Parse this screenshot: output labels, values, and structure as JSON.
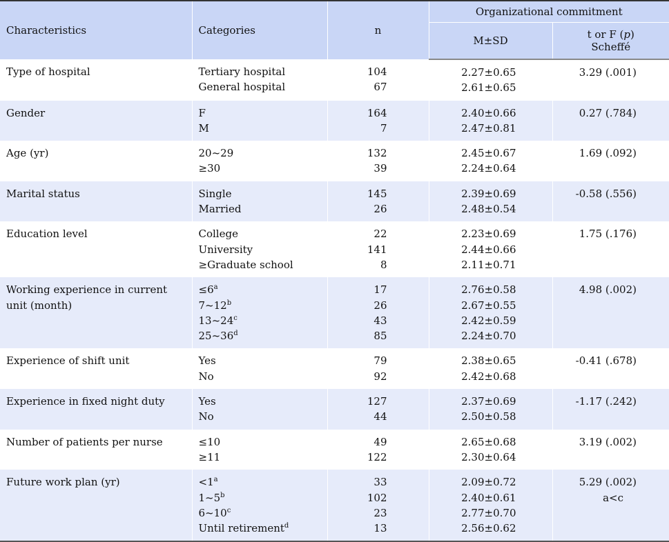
{
  "header": {
    "characteristics": "Characteristics",
    "categories": "Categories",
    "n": "n",
    "organizational_commitment": "Organizational commitment",
    "msd": "M±SD",
    "t_or_f_prefix": "t or F (",
    "t_or_f_p": "p",
    "t_or_f_suffix": ")",
    "scheffe": "Scheffé"
  },
  "rows": [
    {
      "characteristic": "Type of hospital",
      "categories": [
        "Tertiary hospital",
        "General hospital"
      ],
      "sups": [
        "",
        ""
      ],
      "n": [
        "104",
        "67"
      ],
      "msd": [
        "2.27±0.65",
        "2.61±0.65"
      ],
      "t": "3.29 (.001)",
      "scheffe": ""
    },
    {
      "characteristic": "Gender",
      "categories": [
        "F",
        "M"
      ],
      "sups": [
        "",
        ""
      ],
      "n": [
        "164",
        "7"
      ],
      "msd": [
        "2.40±0.66",
        "2.47±0.81"
      ],
      "t": "0.27 (.784)",
      "scheffe": ""
    },
    {
      "characteristic": "Age (yr)",
      "categories": [
        "20~29",
        "≥30"
      ],
      "sups": [
        "",
        ""
      ],
      "n": [
        "132",
        "39"
      ],
      "msd": [
        "2.45±0.67",
        "2.24±0.64"
      ],
      "t": "1.69 (.092)",
      "scheffe": ""
    },
    {
      "characteristic": "Marital status",
      "categories": [
        "Single",
        "Married"
      ],
      "sups": [
        "",
        ""
      ],
      "n": [
        "145",
        "26"
      ],
      "msd": [
        "2.39±0.69",
        "2.48±0.54"
      ],
      "t": "-0.58 (.556)",
      "scheffe": ""
    },
    {
      "characteristic": "Education level",
      "categories": [
        "College",
        "University",
        "≥Graduate school"
      ],
      "sups": [
        "",
        "",
        ""
      ],
      "n": [
        "22",
        "141",
        "8"
      ],
      "msd": [
        "2.23±0.69",
        "2.44±0.66",
        "2.11±0.71"
      ],
      "t": "1.75 (.176)",
      "scheffe": ""
    },
    {
      "characteristic": "Working experience in current unit (month)",
      "categories": [
        "≤6",
        "7~12",
        "13~24",
        "25~36"
      ],
      "sups": [
        "a",
        "b",
        "c",
        "d"
      ],
      "n": [
        "17",
        "26",
        "43",
        "85"
      ],
      "msd": [
        "2.76±0.58",
        "2.67±0.55",
        "2.42±0.59",
        "2.24±0.70"
      ],
      "t": "4.98 (.002)",
      "scheffe": ""
    },
    {
      "characteristic": "Experience of shift unit",
      "categories": [
        "Yes",
        "No"
      ],
      "sups": [
        "",
        ""
      ],
      "n": [
        "79",
        "92"
      ],
      "msd": [
        "2.38±0.65",
        "2.42±0.68"
      ],
      "t": "-0.41 (.678)",
      "scheffe": ""
    },
    {
      "characteristic": "Experience in fixed night duty",
      "categories": [
        "Yes",
        "No"
      ],
      "sups": [
        "",
        ""
      ],
      "n": [
        "127",
        "44"
      ],
      "msd": [
        "2.37±0.69",
        "2.50±0.58"
      ],
      "t": "-1.17 (.242)",
      "scheffe": ""
    },
    {
      "characteristic": "Number of patients per nurse",
      "categories": [
        "≤10",
        "≥11"
      ],
      "sups": [
        "",
        ""
      ],
      "n": [
        "49",
        "122"
      ],
      "msd": [
        "2.65±0.68",
        "2.30±0.64"
      ],
      "t": "3.19 (.002)",
      "scheffe": ""
    },
    {
      "characteristic": "Future work plan (yr)",
      "categories": [
        "<1",
        "1~5",
        "6~10",
        "Until retirement"
      ],
      "sups": [
        "a",
        "b",
        "c",
        "d"
      ],
      "n": [
        "33",
        "102",
        "23",
        "13"
      ],
      "msd": [
        "2.09±0.72",
        "2.40±0.61",
        "2.77±0.70",
        "2.56±0.62"
      ],
      "t": "5.29 (.002)",
      "scheffe": "a<c"
    }
  ]
}
